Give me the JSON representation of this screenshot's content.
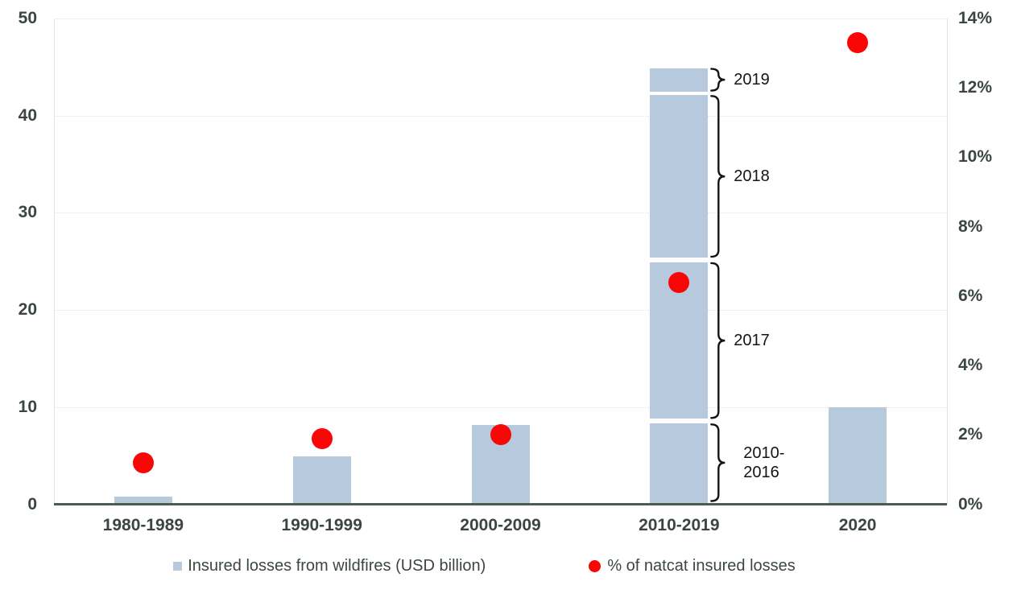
{
  "chart_data": {
    "type": "combo (bar + scatter)",
    "title": "",
    "categories": [
      "1980-1989",
      "1990-1999",
      "2000-2009",
      "2010-2019",
      "2020"
    ],
    "series": [
      {
        "name": "Insured losses from wildfires (USD billion)",
        "type": "bar",
        "axis": "left",
        "values": [
          0.8,
          4.9,
          8.2,
          44.9,
          10
        ],
        "stacked_breakdown": {
          "category": "2010-2019",
          "category_index": 3,
          "segments": [
            {
              "label": "2010-2016",
              "label_lines": [
                "2010-",
                "2016"
              ],
              "from": 0,
              "to": 8.3
            },
            {
              "label": "2017",
              "label_lines": [
                "2017"
              ],
              "from": 8.8,
              "to": 24.9
            },
            {
              "label": "2018",
              "label_lines": [
                "2018"
              ],
              "from": 25.4,
              "to": 42.1
            },
            {
              "label": "2019",
              "label_lines": [
                "2019"
              ],
              "from": 42.5,
              "to": 44.9
            }
          ]
        }
      },
      {
        "name": "% of natcat insured losses",
        "type": "scatter",
        "axis": "right",
        "values": [
          1.2,
          1.9,
          2.0,
          6.4,
          13.3
        ]
      }
    ],
    "axes": {
      "left": {
        "min": 0,
        "max": 50,
        "step": 10,
        "tick_labels": [
          "0",
          "10",
          "20",
          "30",
          "40",
          "50"
        ]
      },
      "right": {
        "min": 0,
        "max": 14,
        "step": 2,
        "tick_labels": [
          "0%",
          "2%",
          "4%",
          "6%",
          "8%",
          "10%",
          "12%",
          "14%"
        ]
      }
    },
    "grid": {
      "horizontal": "dotted lines at left-axis steps 10..50",
      "vertical": "none"
    },
    "legend_position": "bottom-center",
    "legend": [
      {
        "marker": "square",
        "label": "Insured losses from wildfires (USD billion)"
      },
      {
        "marker": "circle",
        "label": "% of natcat insured losses"
      }
    ],
    "colors": {
      "bar": "#b7c9dd",
      "scatter": "#f90606",
      "axis_text": "#3b463f",
      "axis_line": "#4c5b52",
      "gridline": "#e2e2e2",
      "plot_border": "#e3e3e3",
      "annotation": "#141414",
      "background": "#ffffff"
    }
  }
}
